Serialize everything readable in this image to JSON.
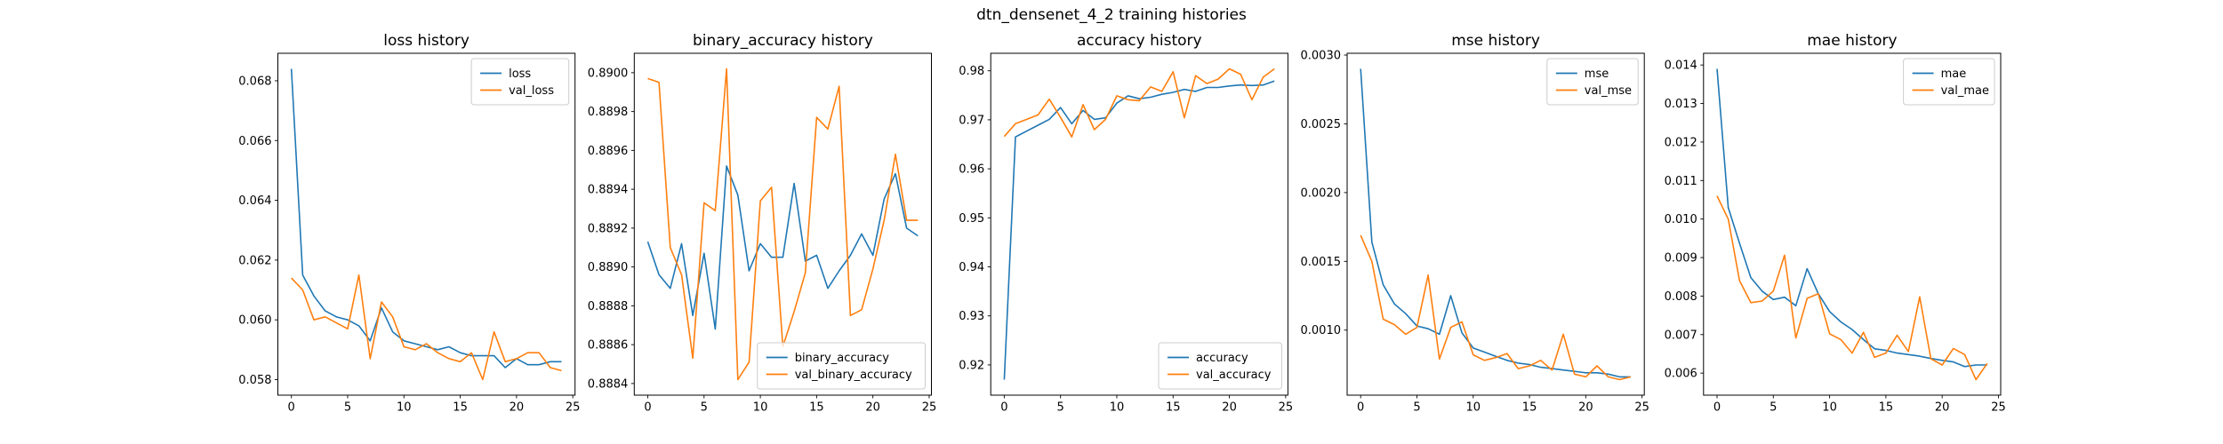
{
  "suptitle": "dtn_densenet_4_2 training histories",
  "x_tick_labels": [
    "0",
    "5",
    "10",
    "15",
    "20",
    "25"
  ],
  "epochs": [
    0,
    1,
    2,
    3,
    4,
    5,
    6,
    7,
    8,
    9,
    10,
    11,
    12,
    13,
    14,
    15,
    16,
    17,
    18,
    19,
    20,
    21,
    22,
    23,
    24
  ],
  "colors": {
    "train": "#1f77b4",
    "val": "#ff7f0e"
  },
  "chart_data": [
    {
      "id": "loss",
      "type": "line",
      "title": "loss history",
      "xlabel": "",
      "ylabel": "",
      "grid": false,
      "xlim": [
        -1.2,
        25.2
      ],
      "ylim": [
        0.05748,
        0.06892
      ],
      "yticks": [
        "0.058",
        "0.060",
        "0.062",
        "0.064",
        "0.066",
        "0.068"
      ],
      "legend_loc": "upper-right",
      "legend_entries": [
        "loss",
        "val_loss"
      ],
      "series": [
        {
          "name": "loss",
          "color": "#1f77b4",
          "values": [
            0.0684,
            0.0615,
            0.0608,
            0.0603,
            0.0601,
            0.06,
            0.0598,
            0.0593,
            0.0604,
            0.0596,
            0.0593,
            0.0592,
            0.0591,
            0.059,
            0.0591,
            0.0589,
            0.0588,
            0.0588,
            0.0588,
            0.0584,
            0.0587,
            0.0585,
            0.0585,
            0.0586,
            0.0586
          ]
        },
        {
          "name": "val_loss",
          "color": "#ff7f0e",
          "values": [
            0.0614,
            0.061,
            0.06,
            0.0601,
            0.0599,
            0.0597,
            0.0615,
            0.0587,
            0.0606,
            0.0601,
            0.0591,
            0.059,
            0.0592,
            0.0589,
            0.0587,
            0.0586,
            0.0589,
            0.058,
            0.0596,
            0.0586,
            0.0587,
            0.0589,
            0.0589,
            0.0584,
            0.0583
          ]
        }
      ]
    },
    {
      "id": "binary_accuracy",
      "type": "line",
      "title": "binary_accuracy history",
      "xlabel": "",
      "ylabel": "",
      "grid": false,
      "xlim": [
        -1.2,
        25.2
      ],
      "ylim": [
        0.88834,
        0.8901
      ],
      "yticks": [
        "0.8884",
        "0.8886",
        "0.8888",
        "0.8890",
        "0.8892",
        "0.8894",
        "0.8896",
        "0.8898",
        "0.8900"
      ],
      "legend_loc": "lower-right",
      "legend_entries": [
        "binary_accuracy",
        "val_binary_accuracy"
      ],
      "series": [
        {
          "name": "binary_accuracy",
          "color": "#1f77b4",
          "values": [
            0.88913,
            0.88896,
            0.88889,
            0.88912,
            0.88875,
            0.88907,
            0.88868,
            0.88952,
            0.88937,
            0.88898,
            0.88912,
            0.88905,
            0.88905,
            0.88943,
            0.88903,
            0.88906,
            0.88889,
            0.88898,
            0.88906,
            0.88917,
            0.88906,
            0.88935,
            0.88948,
            0.8892,
            0.88916
          ]
        },
        {
          "name": "val_binary_accuracy",
          "color": "#ff7f0e",
          "values": [
            0.88997,
            0.88995,
            0.8891,
            0.88896,
            0.88853,
            0.88933,
            0.88929,
            0.89002,
            0.88842,
            0.88851,
            0.88934,
            0.88941,
            0.88859,
            0.88877,
            0.88897,
            0.88977,
            0.88971,
            0.88993,
            0.88875,
            0.88878,
            0.88899,
            0.88924,
            0.88958,
            0.88924,
            0.88924
          ]
        }
      ]
    },
    {
      "id": "accuracy",
      "type": "line",
      "title": "accuracy history",
      "xlabel": "",
      "ylabel": "",
      "grid": false,
      "xlim": [
        -1.2,
        25.2
      ],
      "ylim": [
        0.91383,
        0.98357
      ],
      "yticks": [
        "0.92",
        "0.93",
        "0.94",
        "0.95",
        "0.96",
        "0.97",
        "0.98"
      ],
      "legend_loc": "lower-right",
      "legend_entries": [
        "accuracy",
        "val_accuracy"
      ],
      "series": [
        {
          "name": "accuracy",
          "color": "#1f77b4",
          "values": [
            0.917,
            0.9665,
            0.9677,
            0.9689,
            0.9701,
            0.9725,
            0.9692,
            0.9719,
            0.9701,
            0.9704,
            0.9734,
            0.9749,
            0.9743,
            0.9746,
            0.9752,
            0.9756,
            0.9762,
            0.9758,
            0.9766,
            0.9766,
            0.9769,
            0.9771,
            0.977,
            0.9771,
            0.9779
          ]
        },
        {
          "name": "val_accuracy",
          "color": "#ff7f0e",
          "values": [
            0.9666,
            0.9692,
            0.9701,
            0.971,
            0.9742,
            0.9705,
            0.9665,
            0.9731,
            0.968,
            0.9701,
            0.9749,
            0.9741,
            0.9739,
            0.9767,
            0.9758,
            0.9798,
            0.9704,
            0.979,
            0.9774,
            0.9783,
            0.9804,
            0.9793,
            0.9741,
            0.9787,
            0.9804
          ]
        }
      ]
    },
    {
      "id": "mse",
      "type": "line",
      "title": "mse history",
      "xlabel": "",
      "ylabel": "",
      "grid": false,
      "xlim": [
        -1.2,
        25.2
      ],
      "ylim": [
        0.000527,
        0.003013
      ],
      "yticks": [
        "0.0010",
        "0.0015",
        "0.0020",
        "0.0025",
        "0.0030"
      ],
      "legend_loc": "upper-right",
      "legend_entries": [
        "mse",
        "val_mse"
      ],
      "series": [
        {
          "name": "mse",
          "color": "#1f77b4",
          "values": [
            0.0029,
            0.00164,
            0.00133,
            0.00119,
            0.00112,
            0.00103,
            0.00101,
            0.00097,
            0.00125,
            0.00098,
            0.00087,
            0.00084,
            0.00081,
            0.00078,
            0.00076,
            0.00075,
            0.00073,
            0.00072,
            0.00071,
            0.0007,
            0.00069,
            0.00069,
            0.00068,
            0.00066,
            0.00066
          ]
        },
        {
          "name": "val_mse",
          "color": "#ff7f0e",
          "values": [
            0.00169,
            0.0015,
            0.00108,
            0.00104,
            0.00097,
            0.00102,
            0.0014,
            0.00079,
            0.00102,
            0.00106,
            0.00082,
            0.00078,
            0.0008,
            0.00083,
            0.00072,
            0.00074,
            0.00078,
            0.00071,
            0.00097,
            0.00068,
            0.00066,
            0.00074,
            0.00066,
            0.00064,
            0.00066
          ]
        }
      ]
    },
    {
      "id": "mae",
      "type": "line",
      "title": "mae history",
      "xlabel": "",
      "ylabel": "",
      "grid": false,
      "xlim": [
        -1.2,
        25.2
      ],
      "ylim": [
        0.005427,
        0.014304
      ],
      "yticks": [
        "0.006",
        "0.007",
        "0.008",
        "0.009",
        "0.010",
        "0.011",
        "0.012",
        "0.013",
        "0.014"
      ],
      "legend_loc": "upper-right",
      "legend_entries": [
        "mae",
        "val_mae"
      ],
      "series": [
        {
          "name": "mae",
          "color": "#1f77b4",
          "values": [
            0.0139,
            0.0103,
            0.00937,
            0.00848,
            0.00813,
            0.00791,
            0.00797,
            0.00775,
            0.00871,
            0.00806,
            0.0076,
            0.00733,
            0.00713,
            0.00687,
            0.00663,
            0.00659,
            0.00652,
            0.00648,
            0.00644,
            0.00638,
            0.00633,
            0.00629,
            0.00617,
            0.00621,
            0.00621
          ]
        },
        {
          "name": "val_mae",
          "color": "#ff7f0e",
          "values": [
            0.0106,
            0.01,
            0.0084,
            0.00783,
            0.00787,
            0.00813,
            0.00906,
            0.00691,
            0.00794,
            0.00806,
            0.00702,
            0.00687,
            0.00652,
            0.00706,
            0.00641,
            0.00652,
            0.00698,
            0.00656,
            0.00798,
            0.00637,
            0.00621,
            0.00664,
            0.00648,
            0.00583,
            0.00625
          ]
        }
      ]
    }
  ]
}
